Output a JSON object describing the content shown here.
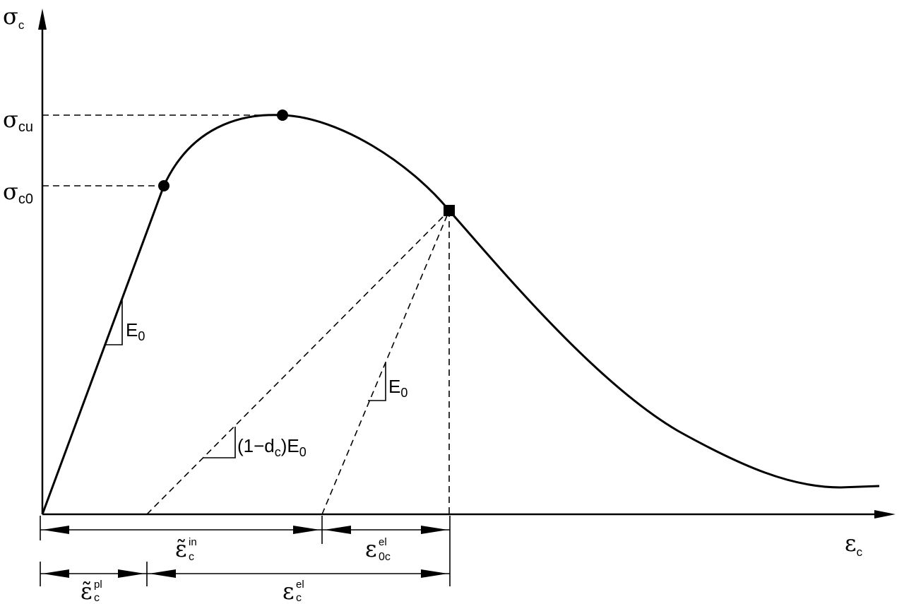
{
  "axes": {
    "y": {
      "symbol": "σ",
      "sub": "c"
    },
    "x": {
      "symbol": "ε",
      "sub": "c"
    }
  },
  "levels": {
    "cu": {
      "symbol": "σ",
      "sub": "cu"
    },
    "c0": {
      "symbol": "σ",
      "sub": "c0"
    }
  },
  "slopes": {
    "elastic_initial": {
      "base": "E",
      "sub": "0"
    },
    "damaged": {
      "pre": "(1−d",
      "sub": "c",
      "post": ")E",
      "post_sub": "0"
    },
    "elastic_unload": {
      "base": "E",
      "sub": "0"
    }
  },
  "strains": {
    "inelastic": {
      "symbol": "ε̃",
      "sup": "in",
      "sub": "c"
    },
    "elastic_0": {
      "symbol": "ε",
      "sup": "el",
      "sub": "0c"
    },
    "plastic": {
      "symbol": "ε̃",
      "sup": "pl",
      "sub": "c"
    },
    "elastic": {
      "symbol": "ε",
      "sup": "el",
      "sub": "c"
    }
  },
  "colors": {
    "ink": "#000000",
    "background": "#ffffff"
  }
}
